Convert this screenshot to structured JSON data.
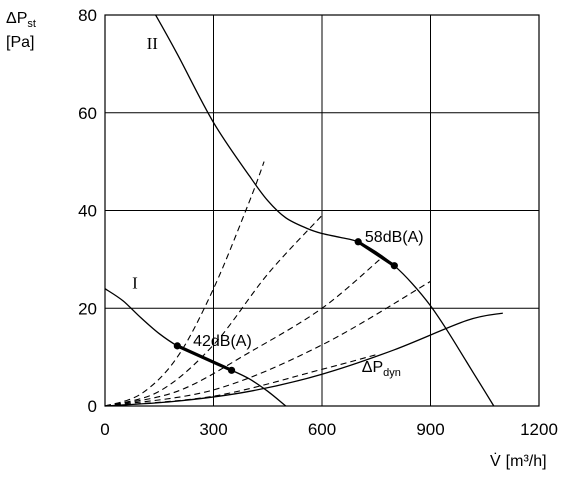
{
  "chart_data": {
    "type": "line",
    "xlim": [
      0,
      1200
    ],
    "ylim": [
      0,
      80
    ],
    "x_ticks": [
      0,
      300,
      600,
      900,
      1200
    ],
    "y_ticks": [
      0,
      20,
      40,
      60,
      80
    ],
    "grid": true,
    "y_axis_label": {
      "symbol": "ΔP",
      "subscript": "st",
      "unit": "[Pa]"
    },
    "x_axis_label": {
      "symbol": "V̇",
      "unit": "[m³/h]"
    },
    "series": [
      {
        "name": "II",
        "style": "solid",
        "points": [
          [
            140,
            80
          ],
          [
            200,
            72
          ],
          [
            300,
            58
          ],
          [
            400,
            47
          ],
          [
            450,
            42
          ],
          [
            500,
            38.5
          ],
          [
            560,
            36.3
          ],
          [
            600,
            35.3
          ],
          [
            650,
            34.5
          ],
          [
            700,
            33.6
          ],
          [
            750,
            31.5
          ],
          [
            800,
            28.7
          ],
          [
            850,
            25
          ],
          [
            900,
            20.5
          ],
          [
            950,
            15
          ],
          [
            1000,
            9
          ],
          [
            1050,
            3
          ],
          [
            1075,
            0
          ]
        ]
      },
      {
        "name": "I",
        "style": "solid",
        "points": [
          [
            0,
            24
          ],
          [
            50,
            21.5
          ],
          [
            100,
            18
          ],
          [
            150,
            14.8
          ],
          [
            200,
            12.3
          ],
          [
            250,
            10.5
          ],
          [
            300,
            8.8
          ],
          [
            350,
            7.3
          ],
          [
            400,
            5.5
          ],
          [
            450,
            3
          ],
          [
            500,
            0
          ]
        ]
      },
      {
        "name": "ΔP_dyn",
        "style": "solid",
        "points": [
          [
            0,
            0
          ],
          [
            200,
            1
          ],
          [
            400,
            3
          ],
          [
            600,
            6.5
          ],
          [
            800,
            11.5
          ],
          [
            1000,
            17.5
          ],
          [
            1100,
            19
          ]
        ]
      },
      {
        "name": "",
        "style": "dashed",
        "points": [
          [
            0,
            0
          ],
          [
            100,
            2.5
          ],
          [
            200,
            10
          ],
          [
            300,
            24
          ],
          [
            400,
            42
          ],
          [
            440,
            50
          ]
        ]
      },
      {
        "name": "",
        "style": "dashed",
        "points": [
          [
            0,
            0
          ],
          [
            150,
            3
          ],
          [
            300,
            12.5
          ],
          [
            450,
            27
          ],
          [
            600,
            39
          ]
        ]
      },
      {
        "name": "",
        "style": "dashed",
        "points": [
          [
            0,
            0
          ],
          [
            200,
            3
          ],
          [
            400,
            11
          ],
          [
            600,
            20
          ],
          [
            760,
            30
          ]
        ]
      },
      {
        "name": "",
        "style": "dashed",
        "points": [
          [
            0,
            0
          ],
          [
            300,
            3.3
          ],
          [
            600,
            12.5
          ],
          [
            900,
            25.5
          ]
        ]
      },
      {
        "name": "",
        "style": "dashed",
        "points": [
          [
            0,
            0
          ],
          [
            300,
            2
          ],
          [
            600,
            7.5
          ],
          [
            750,
            10.5
          ]
        ]
      }
    ],
    "highlights": [
      {
        "label": "42dB(A)",
        "from": [
          200,
          12.3
        ],
        "to": [
          350,
          7.3
        ]
      },
      {
        "label": "58dB(A)",
        "from": [
          700,
          33.6
        ],
        "to": [
          800,
          28.7
        ]
      }
    ],
    "curve_labels": [
      {
        "text": "II",
        "x": 115,
        "y": 73
      },
      {
        "text": "I",
        "x": 75,
        "y": 24
      }
    ],
    "dyn_label": {
      "symbol": "ΔP",
      "subscript": "dyn",
      "x": 710,
      "y": 7
    }
  }
}
